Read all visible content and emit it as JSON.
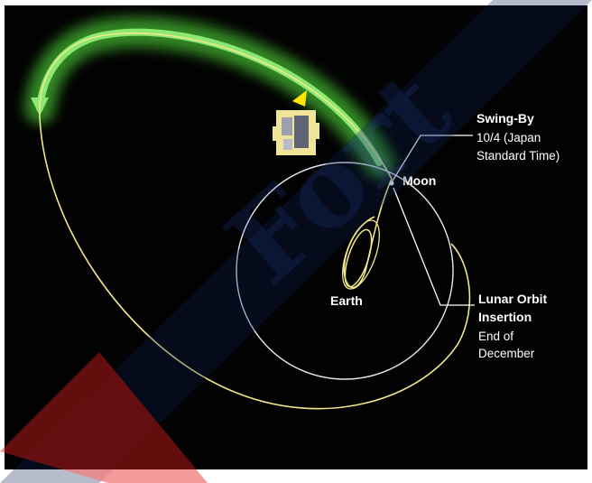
{
  "labels": {
    "swing_by_title": "Swing-By",
    "swing_by_line1": "10/4 (Japan",
    "swing_by_line2": "Standard Time)",
    "moon": "Moon",
    "earth": "Earth",
    "loi_title_line1": "Lunar Orbit",
    "loi_title_line2": "Insertion",
    "loi_line1": "End of",
    "loi_line2": "December"
  },
  "watermark": {
    "text": "Fort"
  },
  "colors": {
    "background": "#020202",
    "trajectory": "#f2e88a",
    "moon_orbit": "#e8eaf2",
    "highlight_arc": "#7de36a",
    "highlight_glow": "#2f8a22",
    "callout_line": "#ffffff",
    "spacecraft": "#f1e58e",
    "direction_marker": "#ffe600",
    "watermark_dark": "#0c1d4e",
    "watermark_red": "#e21b1b"
  },
  "icons": [
    "spacecraft-icon",
    "direction-arrow-icon"
  ]
}
